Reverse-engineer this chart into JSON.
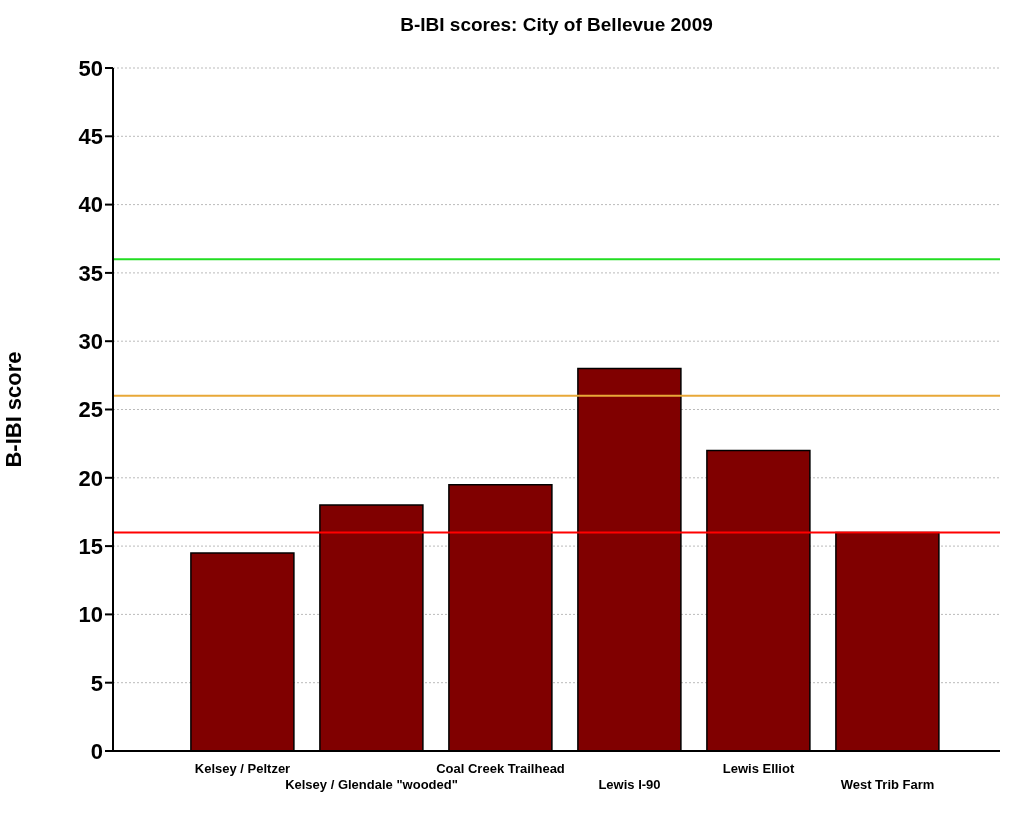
{
  "chart_data": {
    "type": "bar",
    "title": "B-IBI scores: City of Bellevue 2009",
    "ylabel": "B-IBI score",
    "categories": [
      "Kelsey / Peltzer",
      "Kelsey / Glendale \"wooded\"",
      "Coal Creek Trailhead",
      "Lewis I-90",
      "Lewis Elliot",
      "West Trib Farm"
    ],
    "values": [
      14.5,
      18,
      19.5,
      28,
      22,
      16
    ],
    "color": "#800000",
    "ylim": [
      0,
      50
    ],
    "yticks": [
      0,
      5,
      10,
      15,
      20,
      25,
      30,
      35,
      40,
      45,
      50
    ],
    "grid": "y",
    "ref_lines": [
      {
        "axis": "y",
        "value": 36,
        "color": "#22dd22"
      },
      {
        "axis": "y",
        "value": 26,
        "color": "#e8a838"
      },
      {
        "axis": "y",
        "value": 16,
        "color": "#ff0000"
      }
    ]
  }
}
